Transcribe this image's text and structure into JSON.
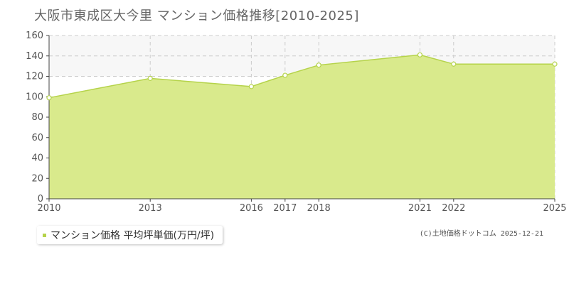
{
  "chart_data": {
    "type": "area",
    "title": "大阪市東成区大今里 マンション価格推移[2010-2025]",
    "categories": [
      "2010",
      "2013",
      "2016",
      "2017",
      "2018",
      "2021",
      "2022",
      "2025"
    ],
    "series": [
      {
        "name": "マンション価格 平均坪単価(万円/坪)",
        "values": [
          99,
          118,
          110,
          121,
          131,
          141,
          132,
          132
        ]
      }
    ],
    "yticks": [
      "0",
      "20",
      "40",
      "60",
      "80",
      "100",
      "120",
      "140",
      "160"
    ],
    "ylim": [
      0,
      160
    ],
    "grid": true,
    "legend_position": "bottom-left",
    "colors": {
      "fill": "#d9ea8c",
      "line": "#b5d34a",
      "grid": "#cccccc",
      "plot_band": "#f7f7f7"
    }
  },
  "legend": {
    "label": "マンション価格 平均坪単価(万円/坪)"
  },
  "copyright": "(C)土地価格ドットコム 2025-12-21"
}
